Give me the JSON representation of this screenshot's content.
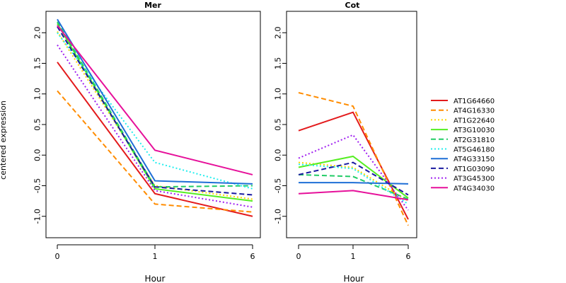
{
  "figure": {
    "ylabel": "centered expression",
    "xlabel": "Hour"
  },
  "legend": {
    "placement": "right",
    "entries": [
      {
        "name": "AT1G64660",
        "color": "#e31a1c",
        "dash": "solid"
      },
      {
        "name": "AT4G16330",
        "color": "#ff8c00",
        "dash": "dashed"
      },
      {
        "name": "AT1G22640",
        "color": "#ffd700",
        "dash": "dotted"
      },
      {
        "name": "AT3G10030",
        "color": "#55ee22",
        "dash": "solid"
      },
      {
        "name": "AT2G31810",
        "color": "#22cc66",
        "dash": "dashed"
      },
      {
        "name": "AT5G46180",
        "color": "#22eeee",
        "dash": "dotted"
      },
      {
        "name": "AT4G33150",
        "color": "#1f6fd6",
        "dash": "solid"
      },
      {
        "name": "AT1G03090",
        "color": "#1a1aa0",
        "dash": "dashed"
      },
      {
        "name": "AT3G45300",
        "color": "#a020f0",
        "dash": "dotted"
      },
      {
        "name": "AT4G34030",
        "color": "#e6109a",
        "dash": "solid"
      }
    ]
  },
  "chart_data": [
    {
      "type": "line",
      "title": "Mer",
      "x": [
        0,
        1,
        6
      ],
      "x_ticklabels": [
        "0",
        "1",
        "6"
      ],
      "ylim": [
        -1.35,
        2.35
      ],
      "y_ticks": [
        -1.0,
        -0.5,
        0.0,
        0.5,
        1.0,
        1.5,
        2.0
      ],
      "y_ticklabels": [
        "-1.0",
        "-0.5",
        "0.0",
        "0.5",
        "1.0",
        "1.5",
        "2.0"
      ],
      "series": [
        {
          "name": "AT1G64660",
          "values": [
            1.52,
            -0.63,
            -1.0
          ]
        },
        {
          "name": "AT4G16330",
          "values": [
            1.05,
            -0.8,
            -0.93
          ]
        },
        {
          "name": "AT1G22640",
          "values": [
            2.02,
            -0.5,
            -0.72
          ]
        },
        {
          "name": "AT3G10030",
          "values": [
            2.15,
            -0.55,
            -0.75
          ]
        },
        {
          "name": "AT2G31810",
          "values": [
            2.18,
            -0.52,
            -0.5
          ]
        },
        {
          "name": "AT5G46180",
          "values": [
            2.0,
            -0.12,
            -0.55
          ]
        },
        {
          "name": "AT4G33150",
          "values": [
            2.22,
            -0.42,
            -0.47
          ]
        },
        {
          "name": "AT1G03090",
          "values": [
            2.1,
            -0.52,
            -0.65
          ]
        },
        {
          "name": "AT3G45300",
          "values": [
            1.8,
            -0.58,
            -0.85
          ]
        },
        {
          "name": "AT4G34030",
          "values": [
            2.12,
            0.08,
            -0.32
          ]
        }
      ]
    },
    {
      "type": "line",
      "title": "Cot",
      "x": [
        0,
        1,
        6
      ],
      "x_ticklabels": [
        "0",
        "1",
        "6"
      ],
      "ylim": [
        -1.35,
        2.35
      ],
      "y_ticks": [
        -1.0,
        -0.5,
        0.0,
        0.5,
        1.0,
        1.5,
        2.0
      ],
      "y_ticklabels": [
        "-1.0",
        "-0.5",
        "0.0",
        "0.5",
        "1.0",
        "1.5",
        "2.0"
      ],
      "series": [
        {
          "name": "AT1G64660",
          "values": [
            0.4,
            0.7,
            -1.05
          ]
        },
        {
          "name": "AT4G16330",
          "values": [
            1.02,
            0.8,
            -1.15
          ]
        },
        {
          "name": "AT1G22640",
          "values": [
            -0.12,
            -0.2,
            -0.75
          ]
        },
        {
          "name": "AT3G10030",
          "values": [
            -0.2,
            -0.02,
            -0.7
          ]
        },
        {
          "name": "AT2G31810",
          "values": [
            -0.32,
            -0.35,
            -0.72
          ]
        },
        {
          "name": "AT5G46180",
          "values": [
            -0.15,
            -0.22,
            -0.8
          ]
        },
        {
          "name": "AT4G33150",
          "values": [
            -0.45,
            -0.45,
            -0.47
          ]
        },
        {
          "name": "AT1G03090",
          "values": [
            -0.32,
            -0.12,
            -0.65
          ]
        },
        {
          "name": "AT3G45300",
          "values": [
            -0.05,
            0.33,
            -0.9
          ]
        },
        {
          "name": "AT4G34030",
          "values": [
            -0.63,
            -0.58,
            -0.73
          ]
        }
      ]
    }
  ]
}
